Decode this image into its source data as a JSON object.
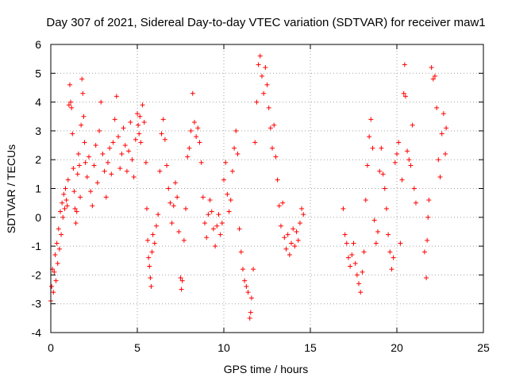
{
  "chart_data": {
    "type": "scatter",
    "title": "Day 307 of 2021, Sidereal Day-to-day VTEC variation (SDTVAR) for receiver maw1",
    "xlabel": "GPS time / hours",
    "ylabel": "SDTVAR / TECUs",
    "xlim": [
      0,
      25
    ],
    "ylim": [
      -4,
      6
    ],
    "xticks": [
      0,
      5,
      10,
      15,
      20,
      25
    ],
    "yticks": [
      -4,
      -3,
      -2,
      -1,
      0,
      1,
      2,
      3,
      4,
      5,
      6
    ],
    "grid": true,
    "marker": "+",
    "color": "#ff0000",
    "series": [
      {
        "name": "maw1",
        "points": [
          [
            0.0,
            -2.9
          ],
          [
            0.05,
            -2.4
          ],
          [
            0.1,
            -1.8
          ],
          [
            0.15,
            -2.6
          ],
          [
            0.2,
            -1.9
          ],
          [
            0.25,
            -1.3
          ],
          [
            0.3,
            -2.2
          ],
          [
            0.35,
            -0.9
          ],
          [
            0.4,
            -1.6
          ],
          [
            0.45,
            -0.4
          ],
          [
            0.5,
            -1.1
          ],
          [
            0.55,
            0.2
          ],
          [
            0.6,
            -0.6
          ],
          [
            0.65,
            0.5
          ],
          [
            0.7,
            0.0
          ],
          [
            0.75,
            0.8
          ],
          [
            0.8,
            0.3
          ],
          [
            0.85,
            1.0
          ],
          [
            0.9,
            0.6
          ],
          [
            0.95,
            0.4
          ],
          [
            1.0,
            1.3
          ],
          [
            1.05,
            3.9
          ],
          [
            1.1,
            4.6
          ],
          [
            1.15,
            4.0
          ],
          [
            1.2,
            3.8
          ],
          [
            1.25,
            2.9
          ],
          [
            1.3,
            1.7
          ],
          [
            1.35,
            0.9
          ],
          [
            1.4,
            0.3
          ],
          [
            1.45,
            -0.2
          ],
          [
            1.5,
            0.2
          ],
          [
            1.55,
            1.5
          ],
          [
            1.6,
            2.2
          ],
          [
            1.65,
            1.8
          ],
          [
            1.7,
            0.7
          ],
          [
            1.75,
            3.2
          ],
          [
            1.8,
            4.8
          ],
          [
            1.85,
            4.3
          ],
          [
            1.9,
            3.5
          ],
          [
            1.95,
            2.6
          ],
          [
            2.0,
            1.9
          ],
          [
            2.1,
            1.4
          ],
          [
            2.2,
            2.1
          ],
          [
            2.3,
            0.9
          ],
          [
            2.4,
            0.4
          ],
          [
            2.5,
            1.8
          ],
          [
            2.6,
            2.5
          ],
          [
            2.7,
            1.2
          ],
          [
            2.8,
            3.0
          ],
          [
            2.9,
            4.0
          ],
          [
            3.0,
            2.2
          ],
          [
            3.1,
            1.6
          ],
          [
            3.2,
            0.7
          ],
          [
            3.3,
            1.9
          ],
          [
            3.4,
            2.4
          ],
          [
            3.5,
            1.5
          ],
          [
            3.6,
            2.6
          ],
          [
            3.7,
            3.4
          ],
          [
            3.8,
            4.2
          ],
          [
            3.9,
            2.8
          ],
          [
            4.0,
            1.7
          ],
          [
            4.1,
            2.2
          ],
          [
            4.2,
            3.1
          ],
          [
            4.3,
            2.5
          ],
          [
            4.4,
            1.6
          ],
          [
            4.5,
            2.3
          ],
          [
            4.6,
            3.3
          ],
          [
            4.7,
            2.0
          ],
          [
            4.8,
            1.4
          ],
          [
            4.9,
            2.7
          ],
          [
            5.0,
            3.6
          ],
          [
            5.05,
            3.2
          ],
          [
            5.1,
            2.9
          ],
          [
            5.15,
            3.5
          ],
          [
            5.2,
            2.6
          ],
          [
            5.3,
            3.9
          ],
          [
            5.4,
            3.3
          ],
          [
            5.5,
            1.9
          ],
          [
            5.55,
            0.3
          ],
          [
            5.6,
            -0.8
          ],
          [
            5.65,
            -1.4
          ],
          [
            5.7,
            -1.7
          ],
          [
            5.75,
            -2.1
          ],
          [
            5.8,
            -2.4
          ],
          [
            5.85,
            -1.2
          ],
          [
            5.9,
            -0.6
          ],
          [
            6.0,
            -0.9
          ],
          [
            6.1,
            -0.3
          ],
          [
            6.2,
            0.1
          ],
          [
            6.3,
            1.6
          ],
          [
            6.4,
            2.9
          ],
          [
            6.5,
            3.4
          ],
          [
            6.6,
            2.7
          ],
          [
            6.7,
            1.8
          ],
          [
            6.8,
            1.0
          ],
          [
            6.9,
            0.5
          ],
          [
            7.0,
            -0.2
          ],
          [
            7.1,
            0.4
          ],
          [
            7.2,
            1.2
          ],
          [
            7.3,
            0.7
          ],
          [
            7.4,
            -0.5
          ],
          [
            7.5,
            -2.1
          ],
          [
            7.55,
            -2.5
          ],
          [
            7.6,
            -2.2
          ],
          [
            7.7,
            -0.8
          ],
          [
            7.8,
            0.3
          ],
          [
            7.9,
            2.1
          ],
          [
            8.0,
            2.4
          ],
          [
            8.1,
            3.0
          ],
          [
            8.2,
            4.3
          ],
          [
            8.3,
            3.3
          ],
          [
            8.4,
            2.8
          ],
          [
            8.5,
            3.1
          ],
          [
            8.6,
            2.6
          ],
          [
            8.7,
            1.9
          ],
          [
            8.8,
            0.7
          ],
          [
            8.9,
            -0.2
          ],
          [
            9.0,
            -0.7
          ],
          [
            9.1,
            0.1
          ],
          [
            9.2,
            0.6
          ],
          [
            9.3,
            0.2
          ],
          [
            9.4,
            -0.4
          ],
          [
            9.5,
            -1.0
          ],
          [
            9.6,
            -0.3
          ],
          [
            9.7,
            0.1
          ],
          [
            9.8,
            -0.6
          ],
          [
            9.9,
            -0.2
          ],
          [
            10.0,
            1.3
          ],
          [
            10.1,
            1.9
          ],
          [
            10.2,
            0.8
          ],
          [
            10.3,
            0.2
          ],
          [
            10.4,
            0.6
          ],
          [
            10.5,
            1.6
          ],
          [
            10.6,
            2.4
          ],
          [
            10.7,
            3.0
          ],
          [
            10.8,
            2.2
          ],
          [
            10.9,
            -0.4
          ],
          [
            11.0,
            -1.2
          ],
          [
            11.1,
            -1.8
          ],
          [
            11.2,
            -2.2
          ],
          [
            11.3,
            -2.4
          ],
          [
            11.4,
            -2.6
          ],
          [
            11.5,
            -3.5
          ],
          [
            11.55,
            -3.3
          ],
          [
            11.6,
            -2.8
          ],
          [
            11.7,
            -1.8
          ],
          [
            11.8,
            2.6
          ],
          [
            11.9,
            4.0
          ],
          [
            12.0,
            5.3
          ],
          [
            12.1,
            5.6
          ],
          [
            12.2,
            4.9
          ],
          [
            12.3,
            4.3
          ],
          [
            12.4,
            5.2
          ],
          [
            12.5,
            4.6
          ],
          [
            12.6,
            3.8
          ],
          [
            12.7,
            3.1
          ],
          [
            12.8,
            2.4
          ],
          [
            12.9,
            3.2
          ],
          [
            13.0,
            2.1
          ],
          [
            13.1,
            1.3
          ],
          [
            13.2,
            0.4
          ],
          [
            13.3,
            -0.3
          ],
          [
            13.4,
            0.5
          ],
          [
            13.5,
            -0.7
          ],
          [
            13.6,
            -1.1
          ],
          [
            13.7,
            -0.6
          ],
          [
            13.8,
            -1.3
          ],
          [
            13.9,
            -0.9
          ],
          [
            14.0,
            -0.4
          ],
          [
            14.1,
            -1.0
          ],
          [
            14.2,
            -0.5
          ],
          [
            14.3,
            -0.8
          ],
          [
            14.4,
            -0.2
          ],
          [
            14.5,
            0.3
          ],
          [
            14.6,
            0.1
          ],
          [
            16.9,
            0.3
          ],
          [
            17.0,
            -0.6
          ],
          [
            17.1,
            -0.9
          ],
          [
            17.2,
            -1.4
          ],
          [
            17.3,
            -1.7
          ],
          [
            17.4,
            -1.3
          ],
          [
            17.5,
            -0.9
          ],
          [
            17.6,
            -1.6
          ],
          [
            17.7,
            -2.0
          ],
          [
            17.8,
            -2.3
          ],
          [
            17.9,
            -2.6
          ],
          [
            18.0,
            -1.9
          ],
          [
            18.1,
            -1.2
          ],
          [
            18.2,
            0.6
          ],
          [
            18.3,
            1.8
          ],
          [
            18.4,
            2.8
          ],
          [
            18.5,
            3.4
          ],
          [
            18.6,
            2.4
          ],
          [
            18.7,
            -0.1
          ],
          [
            18.8,
            -0.9
          ],
          [
            18.9,
            -0.5
          ],
          [
            19.0,
            1.6
          ],
          [
            19.1,
            2.4
          ],
          [
            19.2,
            1.5
          ],
          [
            19.3,
            1.0
          ],
          [
            19.4,
            0.3
          ],
          [
            19.5,
            -0.6
          ],
          [
            19.6,
            -1.2
          ],
          [
            19.7,
            -1.8
          ],
          [
            19.8,
            -1.4
          ],
          [
            19.9,
            1.9
          ],
          [
            20.0,
            2.2
          ],
          [
            20.1,
            2.6
          ],
          [
            20.2,
            -0.9
          ],
          [
            20.3,
            1.3
          ],
          [
            20.4,
            4.3
          ],
          [
            20.45,
            5.3
          ],
          [
            20.5,
            4.2
          ],
          [
            20.6,
            2.3
          ],
          [
            20.7,
            2.0
          ],
          [
            20.8,
            1.8
          ],
          [
            20.9,
            3.2
          ],
          [
            21.0,
            1.0
          ],
          [
            21.1,
            0.5
          ],
          [
            21.6,
            -1.2
          ],
          [
            21.7,
            -2.1
          ],
          [
            21.75,
            -0.8
          ],
          [
            21.8,
            0.0
          ],
          [
            21.85,
            0.6
          ],
          [
            22.0,
            5.2
          ],
          [
            22.1,
            4.8
          ],
          [
            22.2,
            4.9
          ],
          [
            22.3,
            3.8
          ],
          [
            22.4,
            2.0
          ],
          [
            22.5,
            1.4
          ],
          [
            22.6,
            2.9
          ],
          [
            22.7,
            3.6
          ],
          [
            22.8,
            2.2
          ],
          [
            22.85,
            3.1
          ]
        ]
      }
    ]
  }
}
